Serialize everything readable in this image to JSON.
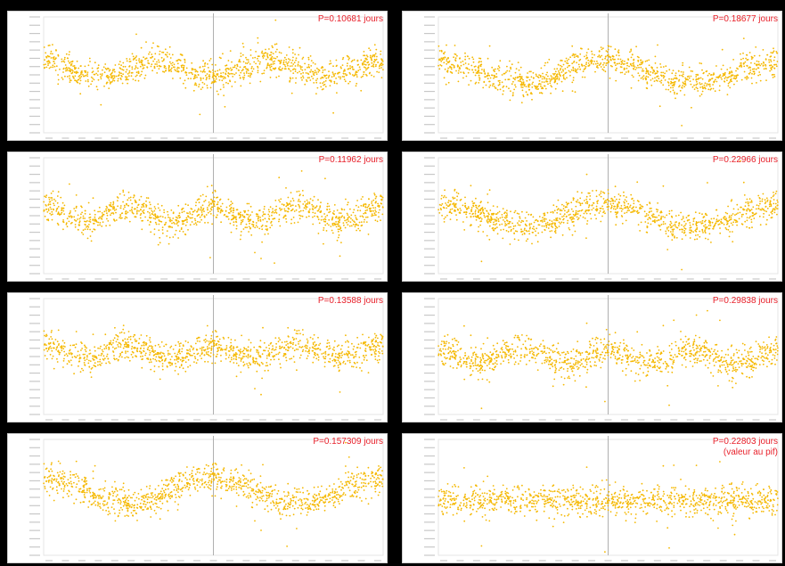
{
  "figure": {
    "background": "#000000",
    "point_color": "#f5b800",
    "label_color": "#e8212b"
  },
  "chart_data": [
    {
      "type": "scatter",
      "label_lines": [
        "P=0.10681 jours"
      ],
      "xlim": [
        -1,
        1
      ],
      "ylim": [
        14.4,
        15.12
      ],
      "curve": {
        "cycles": 3,
        "amplitude": 0.05,
        "mean": 14.72
      },
      "series": [
        {
          "name": "phase-folded light curve",
          "points": "dense, ~1200 points"
        }
      ]
    },
    {
      "type": "scatter",
      "label_lines": [
        "P=0.18677 jours"
      ],
      "xlim": [
        -1,
        1
      ],
      "ylim": [
        14.4,
        15.12
      ],
      "curve": {
        "cycles": 2,
        "amplitude": 0.07,
        "mean": 14.74
      },
      "series": [
        {
          "name": "phase-folded light curve",
          "points": "dense, ~1200 points"
        }
      ]
    },
    {
      "type": "scatter",
      "label_lines": [
        "P=0.11962 jours"
      ],
      "xlim": [
        -1,
        1
      ],
      "ylim": [
        14.4,
        15.12
      ],
      "curve": {
        "cycles": 4,
        "amplitude": 0.05,
        "mean": 14.75
      },
      "series": [
        {
          "name": "phase-folded light curve",
          "points": "dense, ~1200 points"
        }
      ]
    },
    {
      "type": "scatter",
      "label_lines": [
        "P=0.22966 jours"
      ],
      "xlim": [
        -1,
        1
      ],
      "ylim": [
        14.4,
        15.12
      ],
      "curve": {
        "cycles": 2,
        "amplitude": 0.07,
        "mean": 14.76
      },
      "series": [
        {
          "name": "phase-folded light curve",
          "points": "dense, ~1200 points"
        }
      ]
    },
    {
      "type": "scatter",
      "label_lines": [
        "P=0.13588 jours"
      ],
      "xlim": [
        -1,
        1
      ],
      "ylim": [
        14.4,
        15.12
      ],
      "curve": {
        "cycles": 4,
        "amplitude": 0.04,
        "mean": 14.73
      },
      "series": [
        {
          "name": "phase-folded light curve",
          "points": "dense, ~1200 points"
        }
      ]
    },
    {
      "type": "scatter",
      "label_lines": [
        "P=0.29838 jours"
      ],
      "xlim": [
        -1,
        1
      ],
      "ylim": [
        14.4,
        15.12
      ],
      "curve": {
        "cycles": 4,
        "amplitude": 0.04,
        "mean": 14.76
      },
      "series": [
        {
          "name": "phase-folded light curve",
          "points": "dense, ~1200 points"
        }
      ]
    },
    {
      "type": "scatter",
      "label_lines": [
        "P=0.157309 jours"
      ],
      "xlim": [
        -1,
        1
      ],
      "ylim": [
        14.4,
        15.12
      ],
      "curve": {
        "cycles": 2,
        "amplitude": 0.08,
        "mean": 14.72
      },
      "series": [
        {
          "name": "phase-folded light curve",
          "points": "dense, ~1200 points"
        }
      ]
    },
    {
      "type": "scatter",
      "label_lines": [
        "P=0.22803 jours",
        "(valeur au pif)"
      ],
      "xlim": [
        -1,
        1
      ],
      "ylim": [
        14.4,
        15.12
      ],
      "curve": {
        "cycles": 0,
        "amplitude": 0.0,
        "mean": 14.78
      },
      "series": [
        {
          "name": "phase-folded light curve",
          "points": "dense, ~1200 points, no visible modulation"
        }
      ]
    }
  ]
}
